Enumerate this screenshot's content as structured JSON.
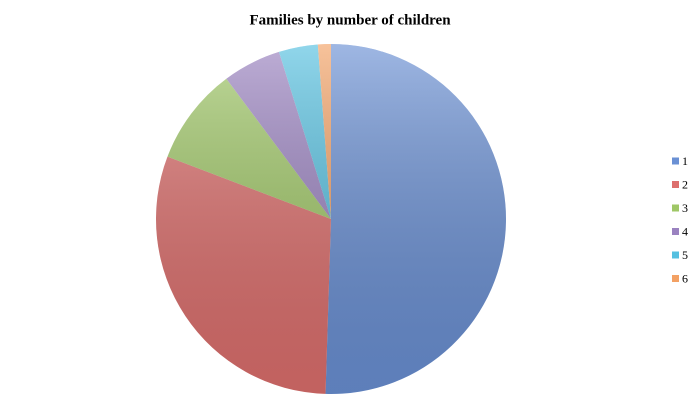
{
  "chart_data": {
    "type": "pie",
    "title": "Families by number of children",
    "categories": [
      "1",
      "2",
      "3",
      "4",
      "5",
      "6"
    ],
    "values": [
      50.5,
      30.3,
      9,
      5.4,
      3.6,
      1.2
    ],
    "colors": [
      "#6a90d4",
      "#dd6f6d",
      "#9fc766",
      "#9a82c0",
      "#55c0e0",
      "#f3a164"
    ],
    "legend": "right"
  }
}
